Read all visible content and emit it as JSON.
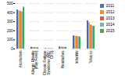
{
  "chart_data": {
    "type": "bar",
    "categories": [
      "Alcoholism",
      "Allergic Rhinitis\n(Hay Fever)",
      "Chronic Fatigue\nSyndrome (ME/\nCFS)",
      "Headaches",
      "Infertility",
      "Tobacco"
    ],
    "series": [
      {
        "name": "2011",
        "values": [
          430,
          18,
          5,
          22,
          145,
          310
        ]
      },
      {
        "name": "2012",
        "values": [
          420,
          17,
          4,
          21,
          140,
          290
        ]
      },
      {
        "name": "2013",
        "values": [
          415,
          16,
          4,
          20,
          138,
          265
        ]
      },
      {
        "name": "2014",
        "values": [
          408,
          15,
          4,
          19,
          135,
          255
        ]
      },
      {
        "name": "2015",
        "values": [
          460,
          14,
          4,
          18,
          132,
          250
        ]
      }
    ],
    "ylim": [
      0,
      500
    ],
    "yticks": [
      0,
      100,
      200,
      300,
      400,
      500
    ],
    "grid": true,
    "legend": "right"
  }
}
